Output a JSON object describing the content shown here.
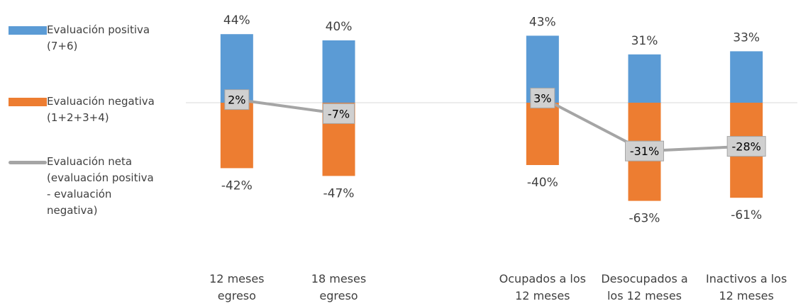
{
  "chart_data": {
    "type": "bar",
    "categories": [
      [
        "12 meses",
        "egreso"
      ],
      [
        "18 meses",
        "egreso"
      ],
      [
        "",
        ""
      ],
      [
        "Ocupados a los",
        "12 meses"
      ],
      [
        "Desocupados a",
        "los 12 meses"
      ],
      [
        "Inactivos a los",
        "12 meses"
      ]
    ],
    "series": [
      {
        "name": "Evaluación positiva (7+6)",
        "legend_lines": [
          "Evaluación positiva",
          "(7+6)"
        ],
        "kind": "bar",
        "color": "#5B9BD5",
        "values": [
          44,
          40,
          null,
          43,
          31,
          33
        ],
        "labels": [
          "44%",
          "40%",
          "",
          "43%",
          "31%",
          "33%"
        ]
      },
      {
        "name": "Evaluación negativa (1+2+3+4)",
        "legend_lines": [
          "Evaluación negativa",
          "(1+2+3+4)"
        ],
        "kind": "bar",
        "color": "#ED7D31",
        "values": [
          -42,
          -47,
          null,
          -40,
          -63,
          -61
        ],
        "labels": [
          "-42%",
          "-47%",
          "",
          "-40%",
          "-63%",
          "-61%"
        ]
      },
      {
        "name": "Evaluación neta (evaluación positiva - evaluación negativa)",
        "legend_lines": [
          "Evaluación neta",
          "(evaluación positiva",
          "- evaluación",
          "negativa)"
        ],
        "kind": "line",
        "color": "#A5A5A5",
        "values": [
          2,
          -7,
          null,
          3,
          -31,
          -28
        ],
        "labels": [
          "2%",
          "-7%",
          "",
          "3%",
          "-31%",
          "-28%"
        ]
      }
    ],
    "ylim": [
      -70,
      50
    ],
    "value_format": "percent",
    "legend_position": "left",
    "grid": false
  }
}
